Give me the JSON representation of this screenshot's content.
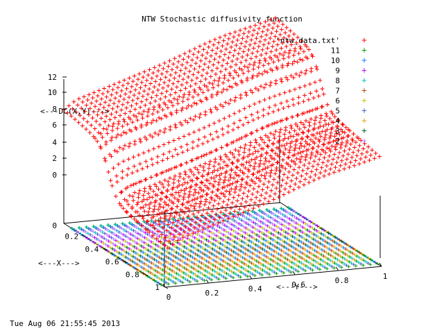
{
  "chart_data": {
    "type": "3d-surface-scatter",
    "title": "NTW Stochastic diffusivity function",
    "xlabel": "<---X--->",
    "ylabel": "<---Y--->",
    "zlabel": "<---DC(X,Y)--->",
    "x_ticks": [
      "0.2",
      "0.4",
      "0.6",
      "0.8",
      "1"
    ],
    "y_ticks": [
      "0",
      "0.2",
      "0.4",
      "0.6",
      "0.8",
      "1"
    ],
    "z_ticks": [
      "12",
      "10",
      "8",
      "6",
      "4",
      "2",
      "0"
    ],
    "z_floor_tick": "0",
    "xlim": [
      0,
      1
    ],
    "ylim": [
      0,
      1
    ],
    "zlim": [
      0,
      12
    ],
    "legend_position": "top-right",
    "series": [
      {
        "name": "'ntw_data.txt'",
        "color": "#ff0000",
        "marker": "+"
      },
      {
        "name": "11",
        "color": "#00a000",
        "marker": "+"
      },
      {
        "name": "10",
        "color": "#0080ff",
        "marker": "+"
      },
      {
        "name": "9",
        "color": "#c000ff",
        "marker": "+"
      },
      {
        "name": "8",
        "color": "#00c0c0",
        "marker": "+"
      },
      {
        "name": "7",
        "color": "#c04000",
        "marker": "+"
      },
      {
        "name": "6",
        "color": "#c0c000",
        "marker": "+"
      },
      {
        "name": "5",
        "color": "#4060d0",
        "marker": "+"
      },
      {
        "name": "4",
        "color": "#e0a000",
        "marker": "+"
      },
      {
        "name": "3",
        "color": "#006020",
        "marker": "+"
      },
      {
        "name": "2",
        "color": "#b080ff",
        "marker": "+"
      }
    ],
    "surface_levels": {
      "high": 9,
      "low": 1.5
    }
  },
  "footer": {
    "timestamp": "Tue Aug 06 21:55:45 2013"
  }
}
